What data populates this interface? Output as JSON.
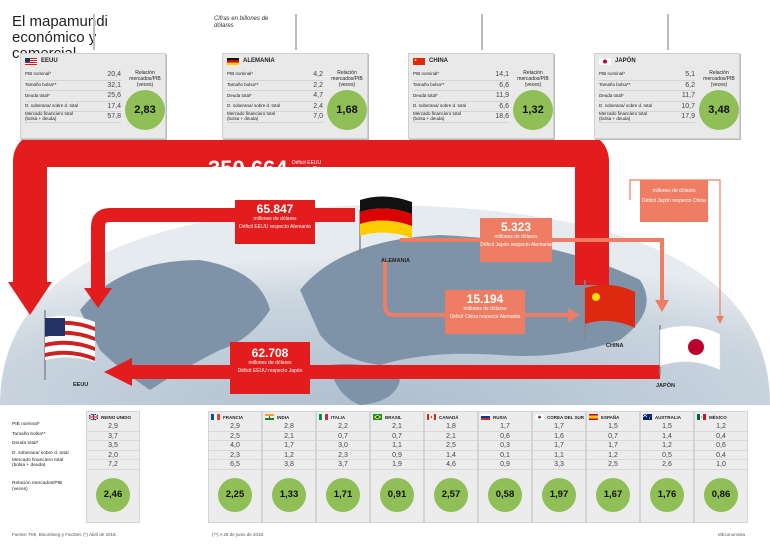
{
  "title": "El mapamundi económico y comercial",
  "subtitle": "Cifras en billones de dólares",
  "colors": {
    "red": "#e31d1d",
    "salmon": "#ef7d63",
    "green": "#8fbf56",
    "card": "#e9e9e9"
  },
  "top_labels": {
    "pib": "PIB nominal*",
    "bolsa": "Tamaño bolsa**",
    "deuda": "Deuda total*",
    "soberana": "D. soberana/ sobre d. total",
    "mercado": "Mercado financiero total (bolsa + deuda)",
    "ratio": "Relación mercados/PIB (veces)"
  },
  "top_cards": [
    {
      "name": "EEUU",
      "flag": "us-flag",
      "values": [
        "20,4",
        "32,1",
        "25,6",
        "17,4",
        "57,8"
      ],
      "ratio": "2,83"
    },
    {
      "name": "ALEMANIA",
      "flag": "germany-flag",
      "values": [
        "4,2",
        "2,2",
        "4,7",
        "2,4",
        "7,0"
      ],
      "ratio": "1,68"
    },
    {
      "name": "CHINA",
      "flag": "china-flag",
      "values": [
        "14,1",
        "6,6",
        "11,9",
        "6,6",
        "18,6"
      ],
      "ratio": "1,32"
    },
    {
      "name": "JAPÓN",
      "flag": "japan-flag",
      "values": [
        "5,1",
        "6,2",
        "11,7",
        "10,7",
        "17,9"
      ],
      "ratio": "3,48"
    }
  ],
  "flows": {
    "main": {
      "value": "350.664",
      "unit": "millones de dólares",
      "desc": "Déficit EEUU respecto China"
    },
    "de_us": {
      "value": "65.847",
      "unit": "millones de dólares",
      "desc": "Déficit EEUU respecto Alemania"
    },
    "jp_de": {
      "value": "5.323",
      "unit": "millones de dólares",
      "desc": "Déficit Japón respecto Alemania"
    },
    "cn_de": {
      "value": "15.194",
      "unit": "millones de dólares",
      "desc": "Déficit China respecto Alemania"
    },
    "jp_us": {
      "value": "62.708",
      "unit": "millones de dólares",
      "desc": "Déficit EEUU respecto Japón"
    },
    "jp_cn": {
      "unit": "millones de dólares",
      "desc": "Déficit Japón respecto China"
    }
  },
  "map_labels": {
    "us": "EEUU",
    "de": "ALEMANIA",
    "cn": "CHINA",
    "jp": "JAPÓN"
  },
  "bottom_labels": {
    "pib": "PIB nominal*",
    "bolsa": "Tamaño bolsa**",
    "deuda": "Deuda total*",
    "soberana": "D. soberana/ sobre d. total",
    "mercado": "Mercado financiero total (bolsa + deuda)",
    "ratio": "Relación mercados/PIB (veces)"
  },
  "bottom_cols": [
    {
      "name": "REINO UNIDO",
      "flag": "uk-flag",
      "values": [
        "2,9",
        "3,7",
        "3,5",
        "2,0",
        "7,2"
      ],
      "ratio": "2,46"
    },
    {
      "name": "FRANCIA",
      "flag": "france-flag",
      "values": [
        "2,9",
        "2,5",
        "4,0",
        "2,3",
        "6,5"
      ],
      "ratio": "2,25"
    },
    {
      "name": "INDIA",
      "flag": "india-flag",
      "values": [
        "2,8",
        "2,1",
        "1,7",
        "1,2",
        "3,8"
      ],
      "ratio": "1,33"
    },
    {
      "name": "ITALIA",
      "flag": "italy-flag",
      "values": [
        "2,2",
        "0,7",
        "3,0",
        "2,3",
        "3,7"
      ],
      "ratio": "1,71"
    },
    {
      "name": "BRASIL",
      "flag": "brazil-flag",
      "values": [
        "2,1",
        "0,7",
        "1,1",
        "0,9",
        "1,9"
      ],
      "ratio": "0,91"
    },
    {
      "name": "CANADÁ",
      "flag": "canada-flag",
      "values": [
        "1,8",
        "2,1",
        "2,5",
        "1,4",
        "4,6"
      ],
      "ratio": "2,57"
    },
    {
      "name": "RUSIA",
      "flag": "russia-flag",
      "values": [
        "1,7",
        "0,6",
        "0,3",
        "0,1",
        "0,9"
      ],
      "ratio": "0,58"
    },
    {
      "name": "COREA DEL SUR",
      "flag": "korea-flag",
      "values": [
        "1,7",
        "1,6",
        "1,7",
        "1,1",
        "3,3"
      ],
      "ratio": "1,97"
    },
    {
      "name": "ESPAÑA",
      "flag": "spain-flag",
      "values": [
        "1,5",
        "0,7",
        "1,7",
        "1,2",
        "2,5"
      ],
      "ratio": "1,67"
    },
    {
      "name": "AUSTRALIA",
      "flag": "australia-flag",
      "values": [
        "1,5",
        "1,4",
        "1,2",
        "0,5",
        "2,6"
      ],
      "ratio": "1,76"
    },
    {
      "name": "MÉXICO",
      "flag": "mexico-flag",
      "values": [
        "1,2",
        "0,4",
        "0,6",
        "0,4",
        "1,0"
      ],
      "ratio": "0,86"
    }
  ],
  "footer": {
    "source": "Fuente: FMI, Bloomberg y FactSet. (*) Abril de 2018.",
    "note": "(**) A 28 de junio de 2018.",
    "brand": "elEconomista"
  }
}
